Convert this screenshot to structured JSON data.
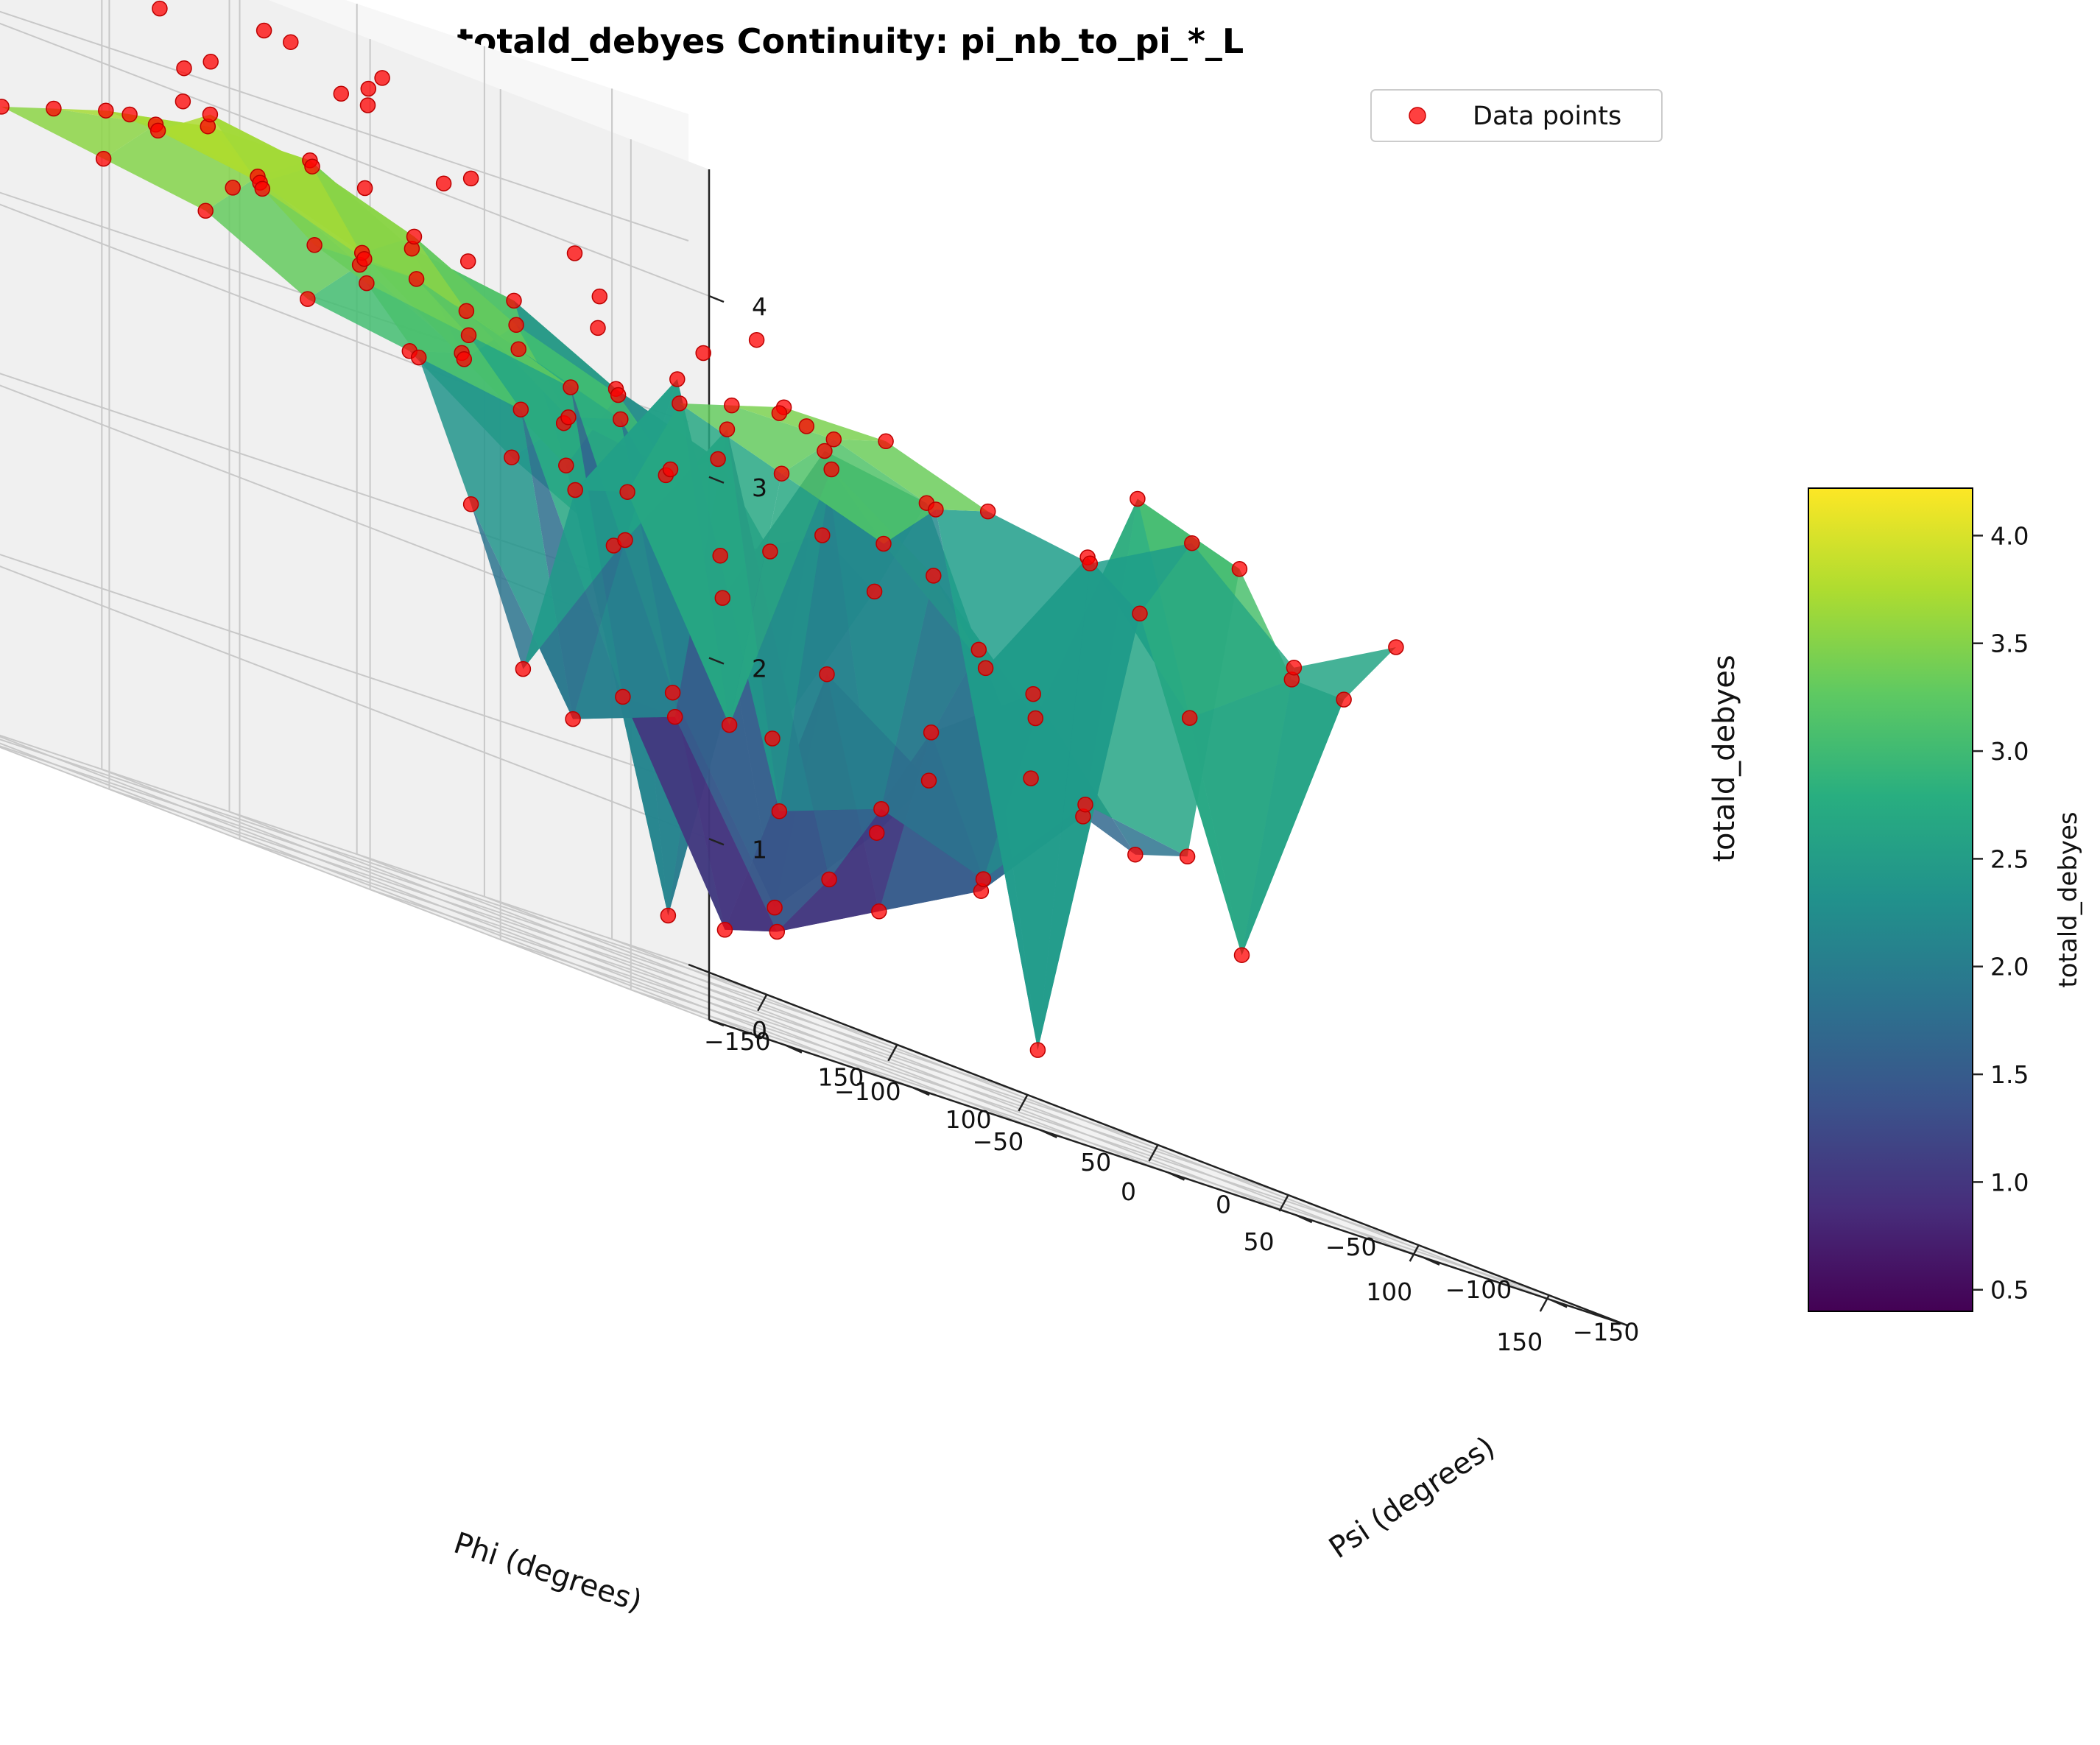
{
  "chart_data": {
    "type": "surface3d",
    "title": "totald_debyes Continuity: pi_nb_to_pi_*_L",
    "xlabel": "Phi (degrees)",
    "ylabel": "Psi (degrees)",
    "zlabel": "totald_debyes",
    "colorbar_label": "totald_debyes",
    "colormap": "viridis",
    "x_ticks": [
      "−150",
      "−100",
      "−50",
      "0",
      "50",
      "100",
      "150"
    ],
    "y_ticks": [
      "−150",
      "−100",
      "−50",
      "0",
      "50",
      "100",
      "150"
    ],
    "z_ticks": [
      "0",
      "1",
      "2",
      "3",
      "4"
    ],
    "colorbar_ticks": [
      "0.5",
      "1.0",
      "1.5",
      "2.0",
      "2.5",
      "3.0",
      "3.5",
      "4.0"
    ],
    "colorbar_range": [
      0.4,
      4.22
    ],
    "xlim": [
      -180,
      180
    ],
    "ylim": [
      -180,
      180
    ],
    "zlim": [
      0,
      4.7
    ],
    "grid": true,
    "legend": {
      "placement": "top-right",
      "entries": [
        {
          "label": "Data points",
          "color": "#ff0000"
        }
      ]
    },
    "scatter_color": "#ff0000",
    "phi_grid": [
      -150,
      -130,
      -110,
      -90,
      -70,
      -50,
      -30,
      -10,
      10,
      30,
      50,
      70,
      90,
      110,
      130,
      150
    ],
    "psi_grid": [
      -120,
      -80,
      -40,
      0,
      40,
      80,
      120
    ],
    "surface_z": [
      [
        2.2,
        2.5,
        2.9,
        3.0,
        3.3,
        3.4,
        3.5
      ],
      [
        2.7,
        2.8,
        3.0,
        3.3,
        3.6,
        3.7,
        3.6
      ],
      [
        2.9,
        3.1,
        3.4,
        3.5,
        3.8,
        3.8,
        3.7
      ],
      [
        2.5,
        0.3,
        2.6,
        3.0,
        3.4,
        3.6,
        3.7
      ],
      [
        2.7,
        2.4,
        3.1,
        3.3,
        3.6,
        3.8,
        3.9
      ],
      [
        2.5,
        1.5,
        2.8,
        2.9,
        3.3,
        3.4,
        3.6
      ],
      [
        3.1,
        3.2,
        2.2,
        3.0,
        3.2,
        3.4,
        3.4
      ],
      [
        2.4,
        1.2,
        0.6,
        1.6,
        3.1,
        3.2,
        3.3
      ],
      [
        1.8,
        1.6,
        2.0,
        0.4,
        1.5,
        2.9,
        3.0
      ],
      [
        1.7,
        1.1,
        0.8,
        0.5,
        1.5,
        1.3,
        2.3
      ],
      [
        1.6,
        2.3,
        1.9,
        0.9,
        3.2,
        2.4,
        1.5
      ],
      [
        1.7,
        1.8,
        1.2,
        1.4,
        1.2,
        3.4,
        2.6
      ],
      [
        3.4,
        3.6,
        2.2,
        2.8,
        3.2,
        1.6,
        2.7
      ],
      [
        2.9,
        2.5,
        3.2,
        2.4,
        2.9,
        3.1,
        3.3
      ],
      [
        2.9,
        1.3,
        3.0,
        0.4,
        3.2,
        3.4,
        3.4
      ],
      [
        3.3,
        3.0,
        3.5,
        3.2,
        3.3,
        3.5,
        3.5
      ]
    ],
    "extra_points": [
      {
        "phi": -60,
        "psi": 150,
        "z": 4.4
      },
      {
        "phi": -40,
        "psi": 160,
        "z": 4.6
      },
      {
        "phi": -20,
        "psi": 150,
        "z": 4.5
      },
      {
        "phi": 0,
        "psi": 160,
        "z": 4.5
      },
      {
        "phi": 20,
        "psi": 150,
        "z": 4.4
      },
      {
        "phi": 40,
        "psi": 165,
        "z": 4.5
      },
      {
        "phi": -80,
        "psi": 120,
        "z": 4.1
      },
      {
        "phi": -60,
        "psi": 130,
        "z": 4.2
      },
      {
        "phi": -10,
        "psi": 130,
        "z": 4.3
      },
      {
        "phi": 10,
        "psi": 140,
        "z": 4.3
      },
      {
        "phi": 30,
        "psi": 120,
        "z": 4.1
      },
      {
        "phi": 60,
        "psi": 110,
        "z": 3.9
      },
      {
        "phi": -100,
        "psi": 100,
        "z": 3.9
      },
      {
        "phi": -40,
        "psi": 90,
        "z": 3.8
      },
      {
        "phi": 0,
        "psi": 100,
        "z": 4.0
      },
      {
        "phi": 50,
        "psi": 90,
        "z": 3.7
      },
      {
        "phi": 80,
        "psi": 80,
        "z": 3.6
      },
      {
        "phi": 20,
        "psi": 60,
        "z": 3.5
      },
      {
        "phi": -20,
        "psi": 70,
        "z": 3.6
      },
      {
        "phi": 100,
        "psi": 60,
        "z": 3.4
      },
      {
        "phi": -120,
        "psi": 60,
        "z": 3.5
      },
      {
        "phi": 70,
        "psi": 40,
        "z": 3.4
      },
      {
        "phi": -140,
        "psi": 80,
        "z": 3.7
      },
      {
        "phi": 120,
        "psi": 100,
        "z": 3.8
      }
    ]
  }
}
